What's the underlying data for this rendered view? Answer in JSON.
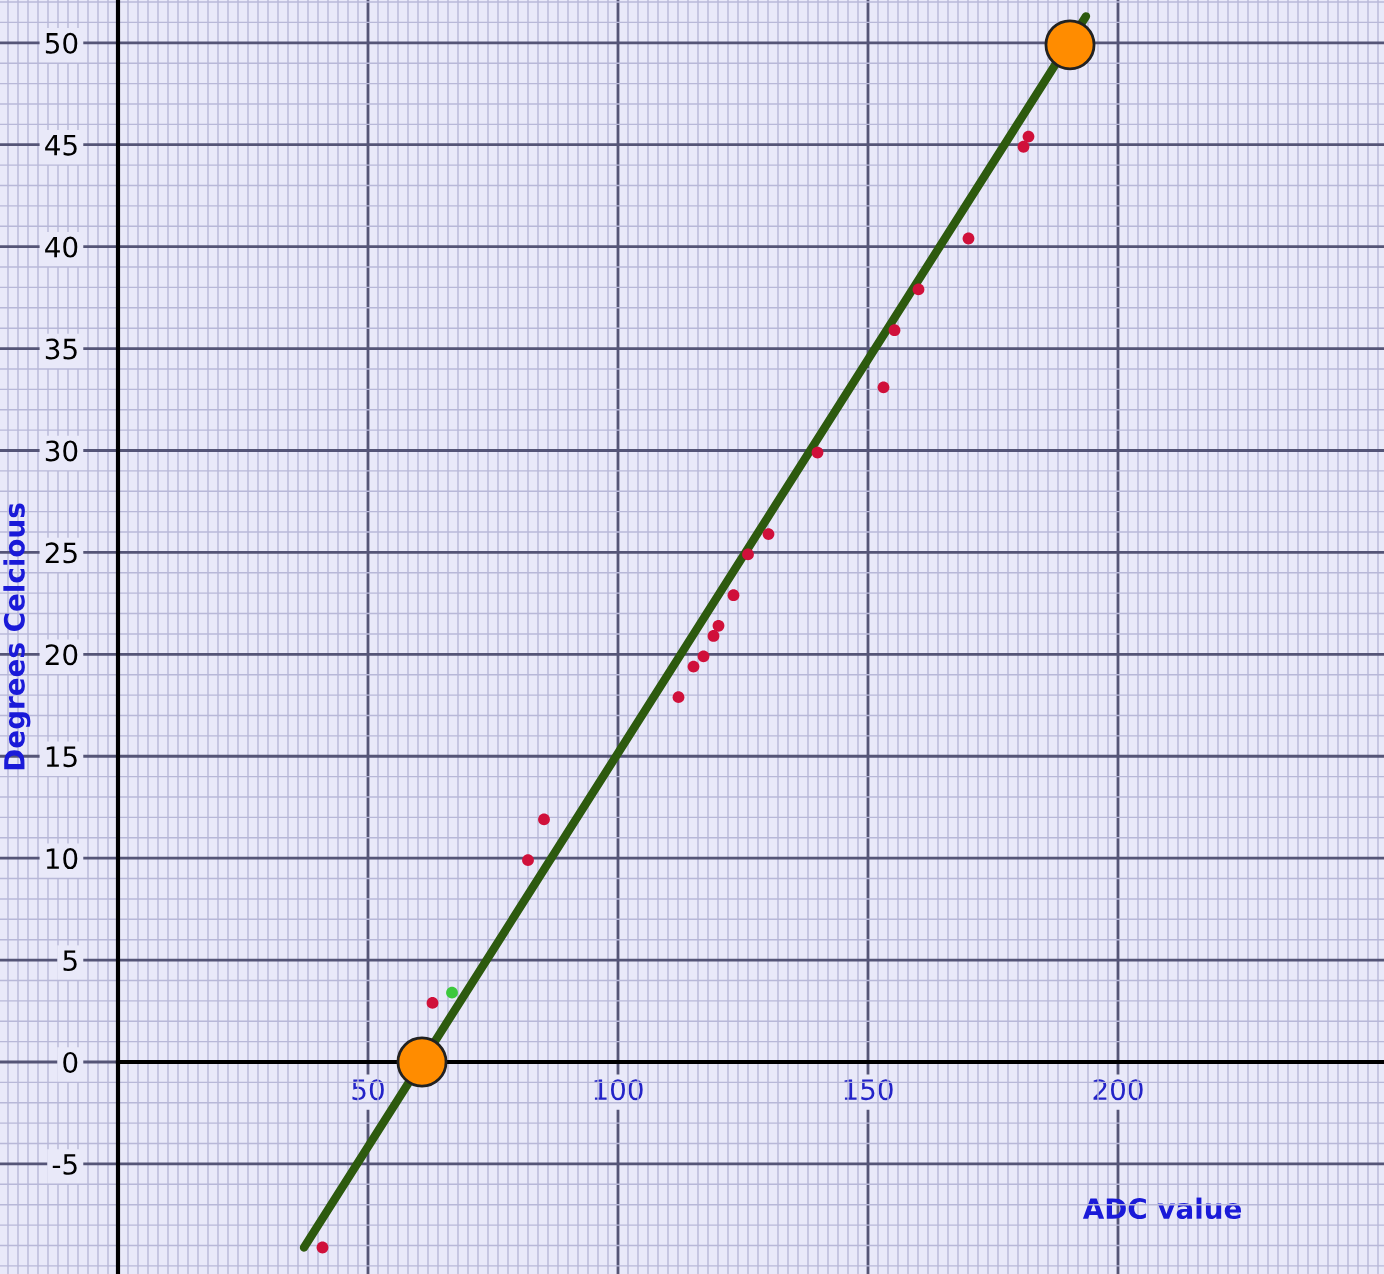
{
  "chart_data": {
    "type": "scatter",
    "xlabel": "ADC value",
    "ylabel": "Degrees Celcious",
    "series": [
      {
        "color": "#d0103a",
        "x": [
          40.9,
          62.9,
          82,
          85.2,
          112.1,
          115.1,
          117.1,
          119.1,
          120.1,
          123.1,
          126,
          130.1,
          139.9,
          153.1,
          155.3,
          160.1,
          170.1,
          181.1,
          182.1
        ],
        "values": [
          -9.1,
          2.9,
          9.9,
          11.9,
          17.9,
          19.4,
          19.9,
          20.9,
          21.4,
          22.9,
          24.9,
          25.9,
          29.9,
          33.1,
          35.9,
          37.9,
          40.4,
          44.9,
          45.4
        ]
      },
      {
        "color": "#3cc83c",
        "x": [
          66.8
        ],
        "values": [
          3.4
        ]
      },
      {
        "type": "line",
        "marker": "none",
        "color": "#2d5a0e",
        "x": [
          37.2,
          193.6
        ],
        "values": [
          -9.1,
          51.3
        ]
      },
      {
        "type": "bubble",
        "color": "#ff8c00",
        "x": [
          60.8,
          190.4
        ],
        "values": [
          0,
          49.9
        ]
      }
    ],
    "marker": "circle",
    "xlim": [
      -23.6,
      253.2
    ],
    "ylim": [
      -10.4,
      52.1
    ],
    "xticks": [
      50,
      100,
      150,
      200
    ],
    "yticks": [
      -5,
      0,
      5,
      10,
      15,
      20,
      25,
      30,
      35,
      40,
      45,
      50
    ],
    "grid": true
  }
}
